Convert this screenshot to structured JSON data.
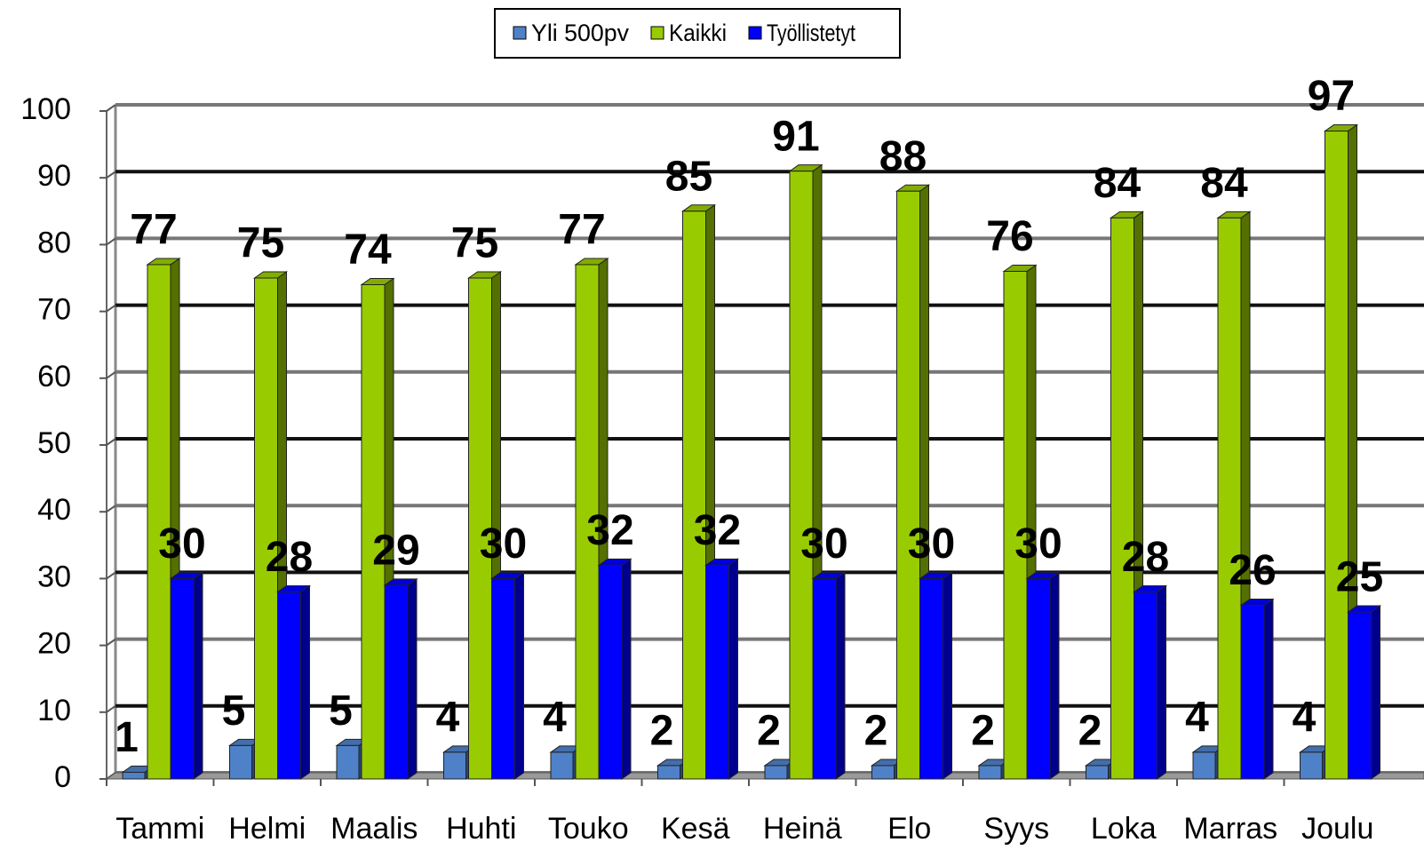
{
  "chart_data": {
    "type": "bar3d",
    "categories": [
      "Tammi",
      "Helmi",
      "Maalis",
      "Huhti",
      "Touko",
      "Kesä",
      "Heinä",
      "Elo",
      "Syys",
      "Loka",
      "Marras",
      "Joulu"
    ],
    "series": [
      {
        "name": "Yli 500pv",
        "color": "#4f81c8",
        "values": [
          1,
          5,
          5,
          4,
          4,
          2,
          2,
          2,
          2,
          2,
          4,
          4
        ]
      },
      {
        "name": "Kaikki",
        "color": "#99cc00",
        "values": [
          77,
          75,
          74,
          75,
          77,
          85,
          91,
          88,
          76,
          84,
          84,
          97
        ]
      },
      {
        "name": "Työllistetyt",
        "color": "#0000ff",
        "values": [
          30,
          28,
          29,
          30,
          32,
          32,
          30,
          30,
          30,
          28,
          26,
          25
        ]
      }
    ],
    "ylim": [
      0,
      100
    ],
    "yticks": [
      0,
      10,
      20,
      30,
      40,
      50,
      60,
      70,
      80,
      90,
      100
    ],
    "grid": true,
    "legend": "top"
  }
}
